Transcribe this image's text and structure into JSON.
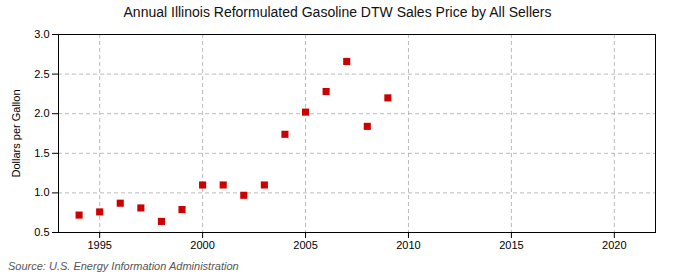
{
  "chart_data": {
    "type": "scatter",
    "title": "Annual Illinois Reformulated Gasoline DTW Sales Price by All Sellers",
    "ylabel": "Dollars per Gallon",
    "source": "Source: U.S. Energy Information Administration",
    "x": [
      1994,
      1995,
      1996,
      1997,
      1998,
      1999,
      2000,
      2001,
      2002,
      2003,
      2004,
      2005,
      2006,
      2007,
      2008,
      2009
    ],
    "values": [
      0.72,
      0.76,
      0.87,
      0.81,
      0.64,
      0.79,
      1.1,
      1.1,
      0.97,
      1.1,
      1.74,
      2.02,
      2.28,
      2.66,
      1.84,
      2.2
    ],
    "xlim": [
      1993,
      2022
    ],
    "ylim": [
      0.5,
      3.0
    ],
    "xticks": [
      1995,
      2000,
      2005,
      2010,
      2015,
      2020
    ],
    "yticks": [
      0.5,
      {
        "value": 1.0,
        "label": "1.0"
      },
      1.5,
      {
        "value": 2.0,
        "label": "2.0"
      },
      2.5,
      {
        "value": 3.0,
        "label": "3.0"
      }
    ],
    "color": "#cc0000",
    "marker": "square",
    "grid": true
  }
}
